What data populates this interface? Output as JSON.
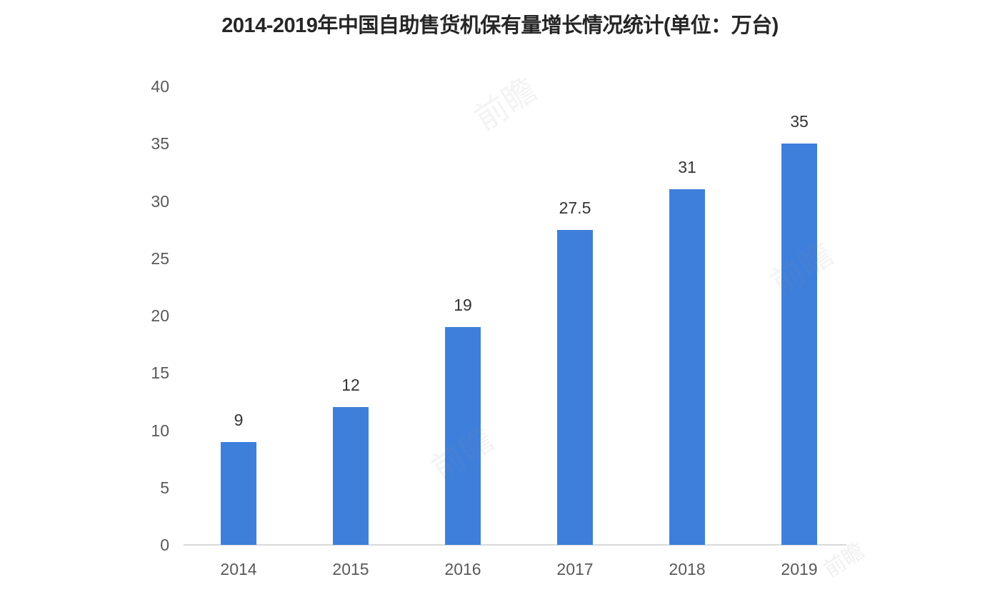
{
  "chart_data": {
    "type": "bar",
    "title": "2014-2019年中国自助售货机保有量增长情况统计(单位：万台)",
    "categories": [
      "2014",
      "2015",
      "2016",
      "2017",
      "2018",
      "2019"
    ],
    "values": [
      9,
      12,
      19,
      27.5,
      31,
      35
    ],
    "value_labels": [
      "9",
      "12",
      "19",
      "27.5",
      "31",
      "35"
    ],
    "xlabel": "",
    "ylabel": "",
    "ylim": [
      0,
      40
    ],
    "yticks": [
      0,
      5,
      10,
      15,
      20,
      25,
      30,
      35,
      40
    ],
    "grid": "off",
    "legend": "none",
    "bar_color": "#3f7fdc",
    "axis_line_color": "#d9d9d9",
    "tick_label_color": "#595959",
    "value_label_color": "#333333",
    "title_color": "#262626",
    "background_color": "#ffffff"
  },
  "watermark": {
    "text": "前瞻"
  }
}
